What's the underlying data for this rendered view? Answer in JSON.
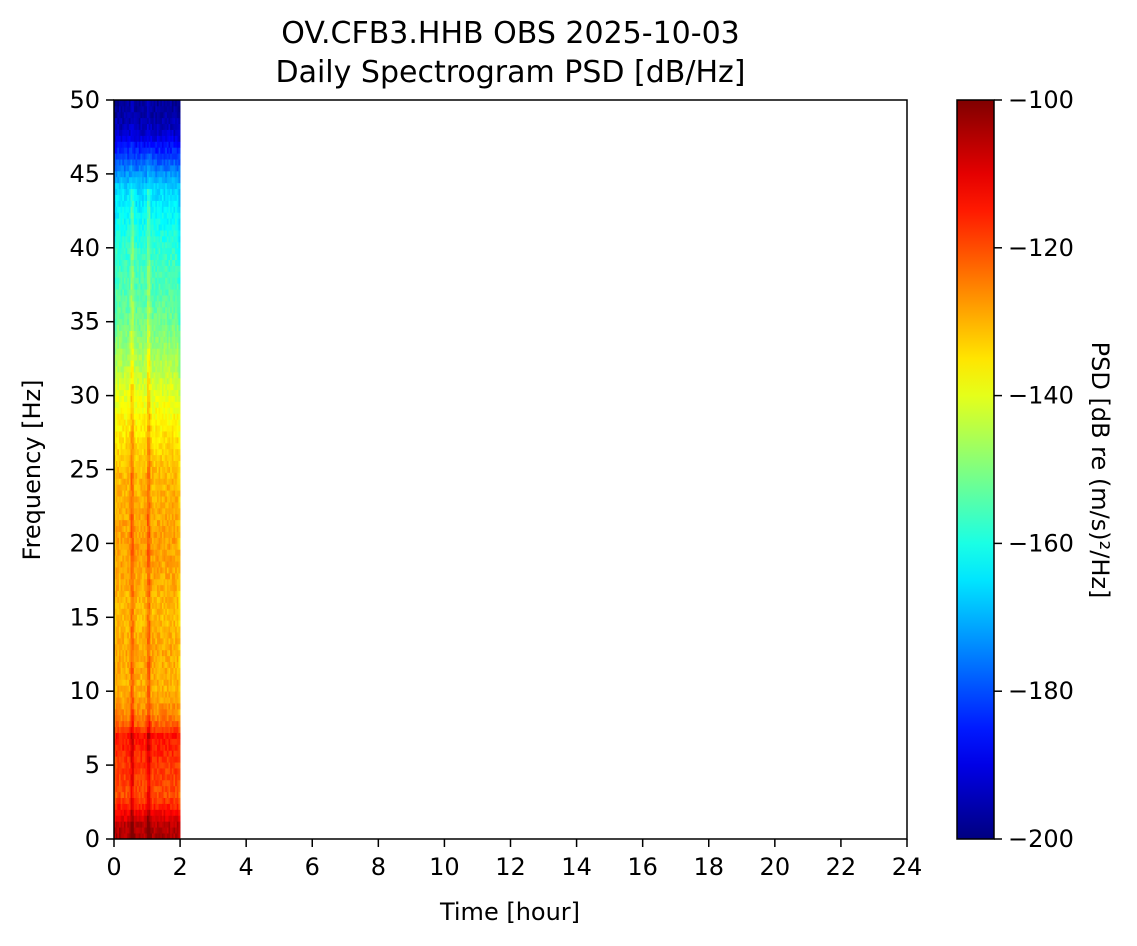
{
  "chart_data": {
    "type": "heatmap",
    "title": "OV.CFB3.HHB OBS 2025-10-03",
    "subtitle": "Daily Spectrogram PSD [dB/Hz]",
    "xlabel": "Time [hour]",
    "ylabel": "Frequency [Hz]",
    "xlim": [
      0,
      24
    ],
    "ylim": [
      0,
      50
    ],
    "xticks": [
      "0",
      "2",
      "4",
      "6",
      "8",
      "10",
      "12",
      "14",
      "16",
      "18",
      "20",
      "22",
      "24"
    ],
    "yticks": [
      "0",
      "5",
      "10",
      "15",
      "20",
      "25",
      "30",
      "35",
      "40",
      "45",
      "50"
    ],
    "colormap": "jet",
    "colorbar": {
      "label": "PSD [dB re (m/s)²/Hz]",
      "range": [
        -200,
        -100
      ],
      "ticks": [
        "−200",
        "−180",
        "−160",
        "−140",
        "−120",
        "−100"
      ]
    },
    "data_extent": {
      "time_hours": [
        0,
        2
      ],
      "frequency_hz": [
        0,
        50
      ]
    },
    "frequency_profile": {
      "frequency": [
        0,
        1,
        2,
        3,
        5,
        7,
        8,
        10,
        13,
        15,
        20,
        25,
        30,
        35,
        40,
        44,
        46,
        48,
        50
      ],
      "psd_db": [
        -104,
        -106,
        -114,
        -120,
        -118,
        -114,
        -124,
        -130,
        -129,
        -131,
        -128,
        -131,
        -140,
        -152,
        -158,
        -166,
        -180,
        -194,
        -198
      ]
    },
    "bright_bands_hours": [
      0.55,
      1.05
    ],
    "grid": false
  }
}
